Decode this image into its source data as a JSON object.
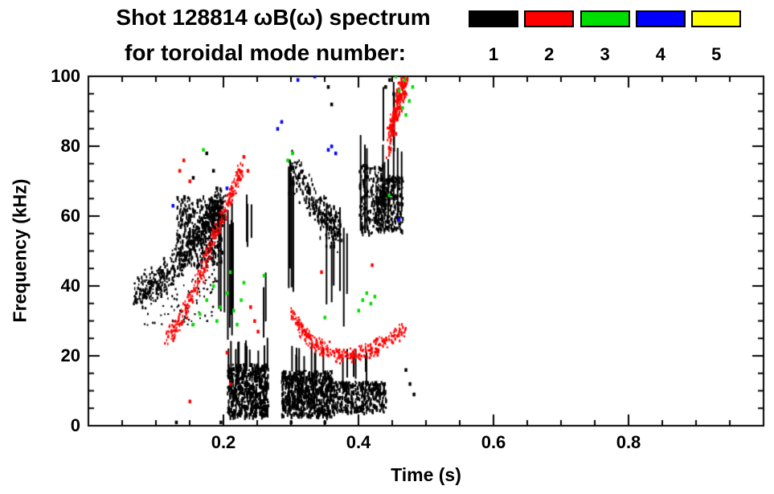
{
  "header": {
    "title": "Shot 128814 ωB(ω) spectrum",
    "subtitle": "for toroidal mode number:",
    "legend": [
      {
        "label": "1",
        "color": "#000000"
      },
      {
        "label": "2",
        "color": "#ff0000"
      },
      {
        "label": "3",
        "color": "#00dd00"
      },
      {
        "label": "4",
        "color": "#0000ff"
      },
      {
        "label": "5",
        "color": "#ffff00"
      }
    ]
  },
  "chart_data": {
    "type": "scatter",
    "title": "Shot 128814 ωB(ω) spectrum for toroidal mode number: 1 2 3 4 5",
    "xlabel": "Time (s)",
    "ylabel": "Frequency (kHz)",
    "xlim": [
      0.0,
      1.0
    ],
    "ylim": [
      0,
      100
    ],
    "x_ticks": [
      {
        "v": 0.2,
        "label": "0.2"
      },
      {
        "v": 0.4,
        "label": "0.4"
      },
      {
        "v": 0.6,
        "label": "0.6"
      },
      {
        "v": 0.8,
        "label": "0.8"
      }
    ],
    "x_minor_step": 0.05,
    "y_ticks": [
      {
        "v": 0,
        "label": "0"
      },
      {
        "v": 20,
        "label": "20"
      },
      {
        "v": 40,
        "label": "40"
      },
      {
        "v": 60,
        "label": "60"
      },
      {
        "v": 80,
        "label": "80"
      },
      {
        "v": 100,
        "label": "100"
      }
    ],
    "y_minor_step": 5,
    "grid": false,
    "legend_position": "top-right",
    "series": [
      {
        "name": "toroidal mode n=1",
        "color": "#000000",
        "clusters": [
          {
            "kind": "band",
            "path": [
              [
                0.068,
                38
              ],
              [
                0.09,
                40
              ],
              [
                0.115,
                44
              ],
              [
                0.14,
                49
              ],
              [
                0.165,
                56
              ],
              [
                0.185,
                61
              ],
              [
                0.2,
                64
              ]
            ],
            "width": 6,
            "n": 480,
            "mark": [
              2,
              5
            ]
          },
          {
            "kind": "region",
            "t": [
              0.13,
              0.197
            ],
            "f": [
              46,
              66
            ],
            "n": 420,
            "mark": [
              2,
              6
            ]
          },
          {
            "kind": "region",
            "t": [
              0.08,
              0.19
            ],
            "f": [
              29,
              45
            ],
            "n": 110,
            "mark": [
              2,
              3
            ]
          },
          {
            "kind": "vstreaks",
            "t": [
              0.19,
              0.215
            ],
            "f": [
              24,
              66
            ],
            "count": 8,
            "w": 2
          },
          {
            "kind": "vstreaks",
            "t": [
              0.21,
              0.245
            ],
            "f": [
              50,
              67
            ],
            "count": 3,
            "w": 2
          },
          {
            "kind": "vstreaks",
            "t": [
              0.245,
              0.27
            ],
            "f": [
              22,
              45
            ],
            "count": 2,
            "w": 2
          },
          {
            "kind": "region",
            "t": [
              0.205,
              0.265
            ],
            "f": [
              3,
              18
            ],
            "n": 620,
            "mark": [
              2,
              7
            ]
          },
          {
            "kind": "vstreaks",
            "t": [
              0.205,
              0.265
            ],
            "f": [
              13,
              26
            ],
            "count": 12,
            "w": 2
          },
          {
            "kind": "region",
            "t": [
              0.285,
              0.36
            ],
            "f": [
              3,
              16
            ],
            "n": 700,
            "mark": [
              2,
              7
            ]
          },
          {
            "kind": "region",
            "t": [
              0.36,
              0.44
            ],
            "f": [
              4,
              13
            ],
            "n": 400,
            "mark": [
              2,
              6
            ]
          },
          {
            "kind": "vstreaks",
            "t": [
              0.29,
              0.42
            ],
            "f": [
              11,
              24
            ],
            "count": 16,
            "w": 2
          },
          {
            "kind": "band",
            "path": [
              [
                0.295,
                74
              ],
              [
                0.315,
                69
              ],
              [
                0.335,
                63
              ],
              [
                0.355,
                58
              ],
              [
                0.372,
                56
              ]
            ],
            "width": 7,
            "n": 260,
            "mark": [
              2,
              6
            ]
          },
          {
            "kind": "vstreaks",
            "t": [
              0.295,
              0.312
            ],
            "f": [
              30,
              78
            ],
            "count": 4,
            "w": 2
          },
          {
            "kind": "vstreaks",
            "t": [
              0.345,
              0.385
            ],
            "f": [
              28,
              64
            ],
            "count": 6,
            "w": 2
          },
          {
            "kind": "region",
            "t": [
              0.4,
              0.435
            ],
            "f": [
              55,
              75
            ],
            "n": 170,
            "mark": [
              2,
              6
            ]
          },
          {
            "kind": "region",
            "t": [
              0.425,
              0.465
            ],
            "f": [
              56,
              72
            ],
            "n": 300,
            "mark": [
              2,
              6
            ]
          },
          {
            "kind": "vstreaks",
            "t": [
              0.4,
              0.465
            ],
            "f": [
              55,
              85
            ],
            "count": 9,
            "w": 2
          },
          {
            "kind": "vstreaks",
            "t": [
              0.435,
              0.452
            ],
            "f": [
              78,
              100
            ],
            "count": 3,
            "w": 2
          },
          {
            "kind": "dots",
            "points": [
              [
                0.44,
                97
              ],
              [
                0.446,
                99
              ],
              [
                0.452,
                95
              ],
              [
                0.13,
                1
              ],
              [
                0.196,
                1
              ],
              [
                0.3,
                1
              ],
              [
                0.35,
                1
              ],
              [
                0.47,
                16
              ],
              [
                0.476,
                12
              ],
              [
                0.482,
                9
              ],
              [
                0.155,
                71
              ],
              [
                0.175,
                78
              ],
              [
                0.185,
                73
              ],
              [
                0.19,
                68
              ],
              [
                0.36,
                92
              ],
              [
                0.355,
                97
              ]
            ]
          }
        ]
      },
      {
        "name": "toroidal mode n=2",
        "color": "#ff0000",
        "clusters": [
          {
            "kind": "band",
            "path": [
              [
                0.115,
                25
              ],
              [
                0.13,
                29
              ],
              [
                0.145,
                34
              ],
              [
                0.16,
                41
              ],
              [
                0.175,
                49
              ],
              [
                0.19,
                57
              ],
              [
                0.205,
                64
              ],
              [
                0.215,
                69
              ],
              [
                0.226,
                74
              ]
            ],
            "width": 3.5,
            "n": 300,
            "mark": [
              2,
              4
            ]
          },
          {
            "kind": "band",
            "path": [
              [
                0.3,
                33
              ],
              [
                0.315,
                28
              ],
              [
                0.33,
                24
              ],
              [
                0.35,
                22
              ],
              [
                0.375,
                20.5
              ],
              [
                0.4,
                21
              ],
              [
                0.425,
                23
              ],
              [
                0.45,
                25.5
              ],
              [
                0.468,
                28
              ]
            ],
            "width": 2.8,
            "n": 340,
            "mark": [
              2,
              4
            ]
          },
          {
            "kind": "band",
            "path": [
              [
                0.443,
                81
              ],
              [
                0.452,
                88
              ],
              [
                0.461,
                95
              ],
              [
                0.468,
                100
              ]
            ],
            "width": 5,
            "n": 190,
            "mark": [
              2,
              6
            ]
          },
          {
            "kind": "dots",
            "points": [
              [
                0.135,
                73
              ],
              [
                0.141,
                76
              ],
              [
                0.15,
                70
              ],
              [
                0.23,
                77
              ],
              [
                0.236,
                73
              ],
              [
                0.24,
                34
              ],
              [
                0.246,
                30
              ],
              [
                0.251,
                27
              ],
              [
                0.205,
                21
              ],
              [
                0.15,
                7
              ],
              [
                0.21,
                12
              ],
              [
                0.345,
                44
              ],
              [
                0.42,
                46
              ]
            ]
          }
        ]
      },
      {
        "name": "toroidal mode n=3",
        "color": "#00dd00",
        "clusters": [
          {
            "kind": "dots",
            "points": [
              [
                0.155,
                29
              ],
              [
                0.165,
                32
              ],
              [
                0.175,
                36
              ],
              [
                0.185,
                40
              ],
              [
                0.19,
                30
              ],
              [
                0.195,
                34
              ],
              [
                0.205,
                38
              ],
              [
                0.215,
                33
              ],
              [
                0.22,
                29
              ],
              [
                0.226,
                36
              ],
              [
                0.23,
                41
              ],
              [
                0.21,
                44
              ],
              [
                0.4,
                33
              ],
              [
                0.406,
                36
              ],
              [
                0.412,
                38
              ],
              [
                0.418,
                35
              ],
              [
                0.424,
                37
              ],
              [
                0.455,
                100
              ],
              [
                0.46,
                96
              ],
              [
                0.465,
                91
              ],
              [
                0.47,
                89
              ],
              [
                0.475,
                93
              ],
              [
                0.48,
                97
              ],
              [
                0.468,
                99
              ],
              [
                0.295,
                76
              ],
              [
                0.302,
                78
              ],
              [
                0.445,
                66
              ],
              [
                0.17,
                79
              ],
              [
                0.26,
                43
              ],
              [
                0.35,
                31
              ]
            ]
          }
        ]
      },
      {
        "name": "toroidal mode n=4",
        "color": "#0000ff",
        "clusters": [
          {
            "kind": "dots",
            "points": [
              [
                0.28,
                85
              ],
              [
                0.286,
                87
              ],
              [
                0.31,
                99
              ],
              [
                0.335,
                100
              ],
              [
                0.355,
                79
              ],
              [
                0.36,
                80
              ],
              [
                0.366,
                78
              ],
              [
                0.205,
                68
              ],
              [
                0.46,
                59
              ],
              [
                0.125,
                63
              ]
            ]
          }
        ]
      },
      {
        "name": "toroidal mode n=5",
        "color": "#ffff00",
        "clusters": []
      }
    ]
  }
}
